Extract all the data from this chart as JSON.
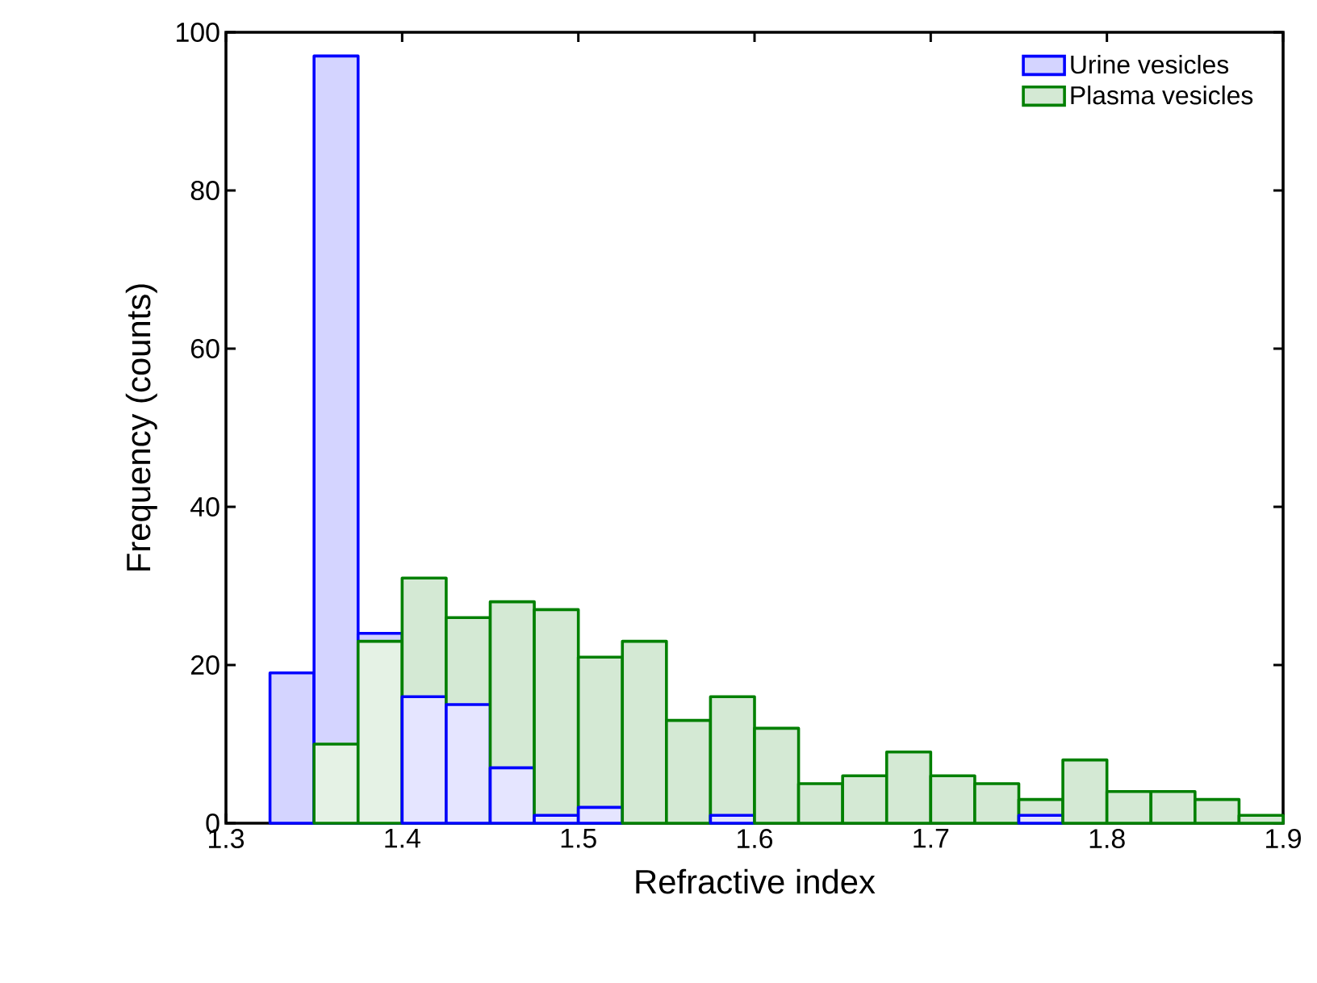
{
  "chart_data": {
    "type": "histogram",
    "xlabel": "Refractive index",
    "ylabel": "Frequency (counts)",
    "bins": [
      1.325,
      1.35,
      1.375,
      1.4,
      1.425,
      1.45,
      1.475,
      1.5,
      1.525,
      1.55,
      1.575,
      1.6,
      1.625,
      1.65,
      1.675,
      1.7,
      1.725,
      1.75,
      1.775,
      1.8,
      1.825,
      1.85,
      1.875,
      1.9
    ],
    "series": [
      {
        "name": "Urine vesicles",
        "color": "#0000ff",
        "values": [
          19,
          97,
          24,
          16,
          15,
          7,
          1,
          2,
          0,
          0,
          1,
          0,
          0,
          0,
          0,
          0,
          0,
          1,
          0,
          0,
          0,
          0,
          0
        ]
      },
      {
        "name": "Plasma vesicles",
        "color": "#008000",
        "values": [
          0,
          10,
          23,
          31,
          26,
          28,
          27,
          21,
          23,
          13,
          16,
          12,
          5,
          6,
          9,
          6,
          5,
          3,
          8,
          4,
          4,
          3,
          1
        ]
      }
    ],
    "xlim": [
      1.3,
      1.9
    ],
    "xticks": [
      1.3,
      1.4,
      1.5,
      1.6,
      1.7,
      1.8,
      1.9
    ],
    "ylim": [
      0,
      100
    ],
    "yticks": [
      0,
      20,
      40,
      60,
      80,
      100
    ],
    "legend": "top right"
  }
}
